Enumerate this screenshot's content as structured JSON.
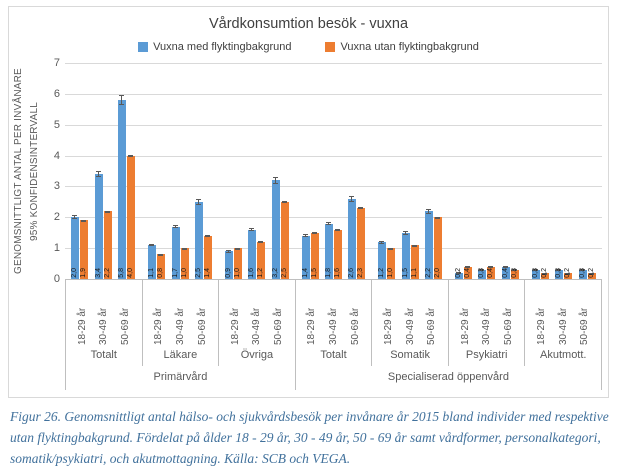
{
  "figure": {
    "title": "Vårdkonsumtion besök - vuxna",
    "legend": [
      {
        "label": "Vuxna med flyktingbakgrund",
        "color": "#5b9bd5"
      },
      {
        "label": "Vuxna utan flyktingbakgrund",
        "color": "#ed7d31"
      }
    ],
    "y_axis": {
      "label_line1": "GENOMSNITTLIGT ANTAL PER INVÅNARE",
      "label_line2": "95% KONFIDENSINTERVALL",
      "min": 0,
      "max": 7,
      "ticks": [
        7,
        6,
        5,
        4,
        3,
        2,
        1,
        0
      ]
    }
  },
  "chart_data": {
    "type": "bar",
    "title": "Vårdkonsumtion besök - vuxna",
    "ylabel": "GENOMSNITTLIGT ANTAL PER INVÅNARE 95% KONFIDENSINTERVALL",
    "ylim": [
      0,
      7
    ],
    "grid": true,
    "legend_position": "top",
    "error_bars": true,
    "decimal_separator": ",",
    "age_labels": [
      "18-29 år",
      "30-49 år",
      "50-69 år"
    ],
    "series": [
      {
        "name": "Vuxna med flyktingbakgrund",
        "color": "#5b9bd5"
      },
      {
        "name": "Vuxna utan flyktingbakgrund",
        "color": "#ed7d31"
      }
    ],
    "group_hierarchy": [
      {
        "label": "Primärvård",
        "categories": [
          "Totalt",
          "Läkare",
          "Övriga"
        ]
      },
      {
        "label": "Specialiserad öppenvård",
        "categories": [
          "Totalt",
          "Somatik",
          "Psykiatri",
          "Akutmott."
        ]
      }
    ],
    "groups": [
      {
        "category": "Totalt",
        "parent": "Primärvård",
        "values_med": [
          2.0,
          3.4,
          5.8
        ],
        "labels_med": [
          "2,0",
          "3,4",
          "5,8"
        ],
        "err_med": [
          0.06,
          0.09,
          0.16
        ],
        "values_utan": [
          1.9,
          2.2,
          4.0
        ],
        "labels_utan": [
          "1,9",
          "2,2",
          "4,0"
        ],
        "err_utan": [
          0.02,
          0.02,
          0.03
        ]
      },
      {
        "category": "Läkare",
        "parent": "Primärvård",
        "values_med": [
          1.1,
          1.7,
          2.5
        ],
        "labels_med": [
          "1,1",
          "1,7",
          "2,5"
        ],
        "err_med": [
          0.04,
          0.06,
          0.09
        ],
        "values_utan": [
          0.8,
          1.0,
          1.4
        ],
        "labels_utan": [
          "0,8",
          "1,0",
          "1,4"
        ],
        "err_utan": [
          0.02,
          0.02,
          0.02
        ]
      },
      {
        "category": "Övriga",
        "parent": "Primärvård",
        "values_med": [
          0.9,
          1.6,
          3.2
        ],
        "labels_med": [
          "0,9",
          "1,6",
          "3,2"
        ],
        "err_med": [
          0.04,
          0.06,
          0.11
        ],
        "values_utan": [
          1.0,
          1.2,
          2.5
        ],
        "labels_utan": [
          "1,0",
          "1,2",
          "2,5"
        ],
        "err_utan": [
          0.02,
          0.02,
          0.03
        ]
      },
      {
        "category": "Totalt",
        "parent": "Specialiserad öppenvård",
        "values_med": [
          1.4,
          1.8,
          2.6
        ],
        "labels_med": [
          "1,4",
          "1,8",
          "2,6"
        ],
        "err_med": [
          0.05,
          0.06,
          0.09
        ],
        "values_utan": [
          1.5,
          1.6,
          2.3
        ],
        "labels_utan": [
          "1,5",
          "1,6",
          "2,3"
        ],
        "err_utan": [
          0.02,
          0.02,
          0.02
        ]
      },
      {
        "category": "Somatik",
        "parent": "Specialiserad öppenvård",
        "values_med": [
          1.2,
          1.5,
          2.2
        ],
        "labels_med": [
          "1,2",
          "1,5",
          "2,2"
        ],
        "err_med": [
          0.05,
          0.06,
          0.08
        ],
        "values_utan": [
          1.0,
          1.1,
          2.0
        ],
        "labels_utan": [
          "1,0",
          "1,1",
          "2,0"
        ],
        "err_utan": [
          0.02,
          0.02,
          0.02
        ]
      },
      {
        "category": "Psykiatri",
        "parent": "Specialiserad öppenvård",
        "values_med": [
          0.2,
          0.3,
          0.4
        ],
        "labels_med": [
          "0,2",
          "0,3",
          "0,4"
        ],
        "err_med": [
          0.02,
          0.03,
          0.04
        ],
        "values_utan": [
          0.4,
          0.4,
          0.3
        ],
        "labels_utan": [
          "0,4",
          "0,4",
          "0,3"
        ],
        "err_utan": [
          0.01,
          0.01,
          0.01
        ]
      },
      {
        "category": "Akutmott.",
        "parent": "Specialiserad öppenvård",
        "values_med": [
          0.3,
          0.3,
          0.3
        ],
        "labels_med": [
          "0,3",
          "0,3",
          "0,3"
        ],
        "err_med": [
          0.02,
          0.02,
          0.03
        ],
        "values_utan": [
          0.2,
          0.2,
          0.2
        ],
        "labels_utan": [
          "0,2",
          "0,2",
          "0,2"
        ],
        "err_utan": [
          0.01,
          0.01,
          0.01
        ]
      }
    ]
  },
  "caption": "Figur 26. Genomsnittligt antal hälso- och sjukvårdsbesök per invånare år 2015 bland individer med respektive utan flyktingbakgrund. Fördelat på ålder 18 - 29 år, 30 - 49 år, 50 - 69 år samt vårdformer, personalkategori, somatik/psykiatri, och akutmottagning. Källa: SCB och VEGA."
}
